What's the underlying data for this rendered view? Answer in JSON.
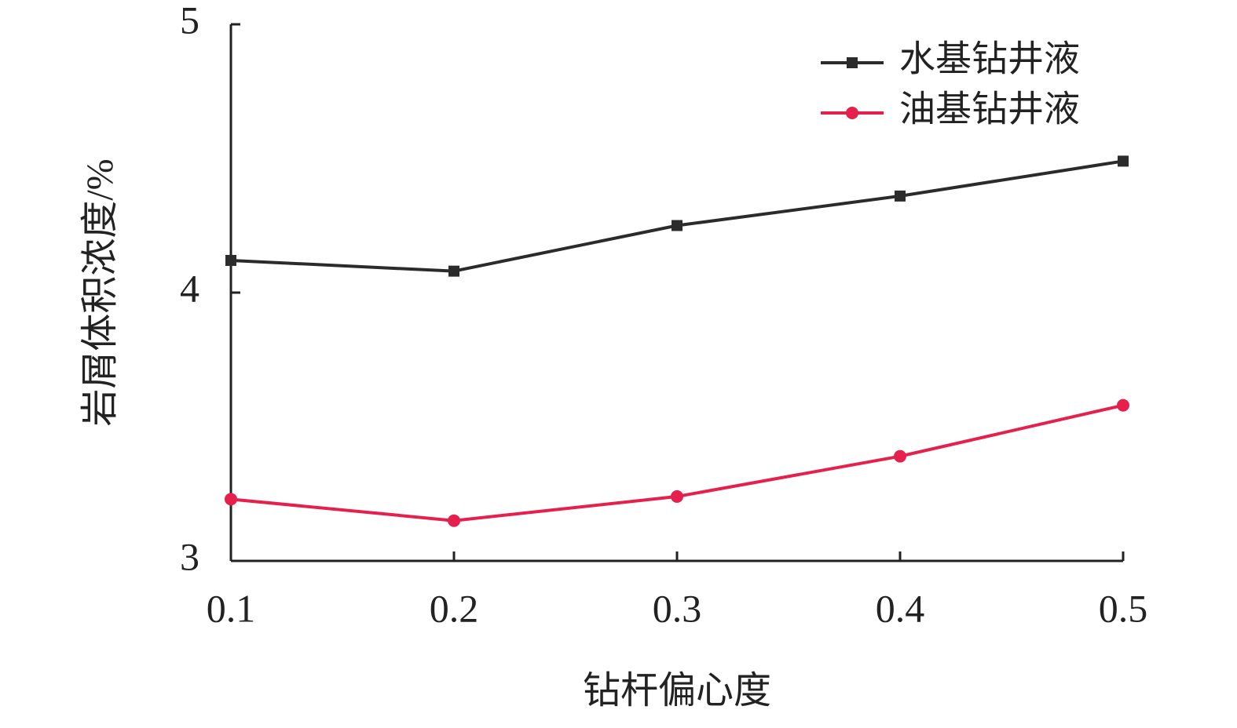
{
  "chart_data": {
    "type": "line",
    "x": [
      0.1,
      0.2,
      0.3,
      0.4,
      0.5
    ],
    "series": [
      {
        "name": "水基钻井液",
        "color": "#2b2b2b",
        "marker": "square",
        "values": [
          4.12,
          4.08,
          4.25,
          4.36,
          4.49
        ]
      },
      {
        "name": "油基钻井液",
        "color": "#e6204d",
        "marker": "circle",
        "values": [
          3.23,
          3.15,
          3.24,
          3.39,
          3.58
        ]
      }
    ],
    "xlabel": "钻杆偏心度",
    "ylabel": "岩屑体积浓度/%",
    "xlim": [
      0.1,
      0.5
    ],
    "xticks": [
      0.1,
      0.2,
      0.3,
      0.4,
      0.5
    ],
    "ylim": [
      3,
      5
    ],
    "yticks": [
      3,
      4,
      5
    ],
    "legend": "upper right",
    "grid": false
  }
}
